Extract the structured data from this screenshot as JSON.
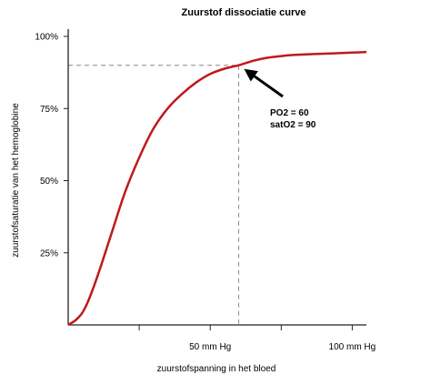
{
  "chart_data": {
    "type": "line",
    "title": "Zuurstof dissociatie curve",
    "xlabel": "zuurstofspanning in het bloed",
    "ylabel": "zuurstofsaturatie van het hemoglobine",
    "xlim": [
      0,
      105
    ],
    "ylim": [
      0,
      100
    ],
    "x_ticks": [
      25,
      50,
      75,
      100
    ],
    "x_tick_labels": [
      "",
      "50 mm Hg",
      "",
      "100 mm Hg"
    ],
    "y_ticks": [
      25,
      50,
      75,
      100
    ],
    "y_tick_labels": [
      "25%",
      "50%",
      "75%",
      "100%"
    ],
    "grid": false,
    "series": [
      {
        "color": "#c0191c",
        "points": [
          {
            "x": 0,
            "y": 0
          },
          {
            "x": 3,
            "y": 2
          },
          {
            "x": 6,
            "y": 6
          },
          {
            "x": 10,
            "y": 16
          },
          {
            "x": 15,
            "y": 31
          },
          {
            "x": 20,
            "y": 46
          },
          {
            "x": 25,
            "y": 58
          },
          {
            "x": 30,
            "y": 68
          },
          {
            "x": 35,
            "y": 75
          },
          {
            "x": 40,
            "y": 80
          },
          {
            "x": 45,
            "y": 84
          },
          {
            "x": 50,
            "y": 87
          },
          {
            "x": 55,
            "y": 88.8
          },
          {
            "x": 60,
            "y": 90
          },
          {
            "x": 65,
            "y": 91.5
          },
          {
            "x": 70,
            "y": 92.6
          },
          {
            "x": 75,
            "y": 93.2
          },
          {
            "x": 80,
            "y": 93.6
          },
          {
            "x": 90,
            "y": 94
          },
          {
            "x": 100,
            "y": 94.4
          },
          {
            "x": 105,
            "y": 94.6
          }
        ]
      }
    ],
    "reference_point": {
      "x": 60,
      "y": 90
    },
    "reference_line_color": "#888888",
    "annotation": {
      "line1": "PO2 = 60",
      "line2": "satO2 = 90"
    }
  }
}
